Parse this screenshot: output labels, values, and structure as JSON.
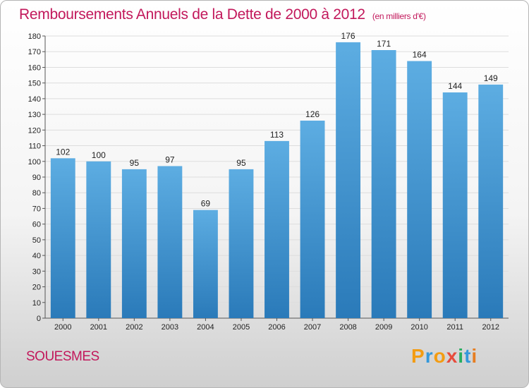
{
  "title": "Remboursements Annuels de la Dette de 2000 à 2012",
  "unit": "(en milliers d'€)",
  "city": "SOUESMES",
  "logo": {
    "text": "Proxiti",
    "colors": [
      "#f39c12",
      "#3498db",
      "#f39c12",
      "#e74c3c",
      "#27ae60",
      "#3498db",
      "#e67e22"
    ]
  },
  "colors": {
    "bar_top": "#5dade2",
    "bar_bottom": "#2a7ab9",
    "title": "#c2185b"
  },
  "chart_data": {
    "type": "bar",
    "title": "Remboursements Annuels de la Dette de 2000 à 2012",
    "categories": [
      "2000",
      "2001",
      "2002",
      "2003",
      "2004",
      "2005",
      "2006",
      "2007",
      "2008",
      "2009",
      "2010",
      "2011",
      "2012"
    ],
    "values": [
      102,
      100,
      95,
      97,
      69,
      95,
      113,
      126,
      176,
      171,
      164,
      144,
      149
    ],
    "ylim": [
      0,
      180
    ],
    "yticks": [
      0,
      10,
      20,
      30,
      40,
      50,
      60,
      70,
      80,
      90,
      100,
      110,
      120,
      130,
      140,
      150,
      160,
      170,
      180
    ],
    "grid": true
  }
}
